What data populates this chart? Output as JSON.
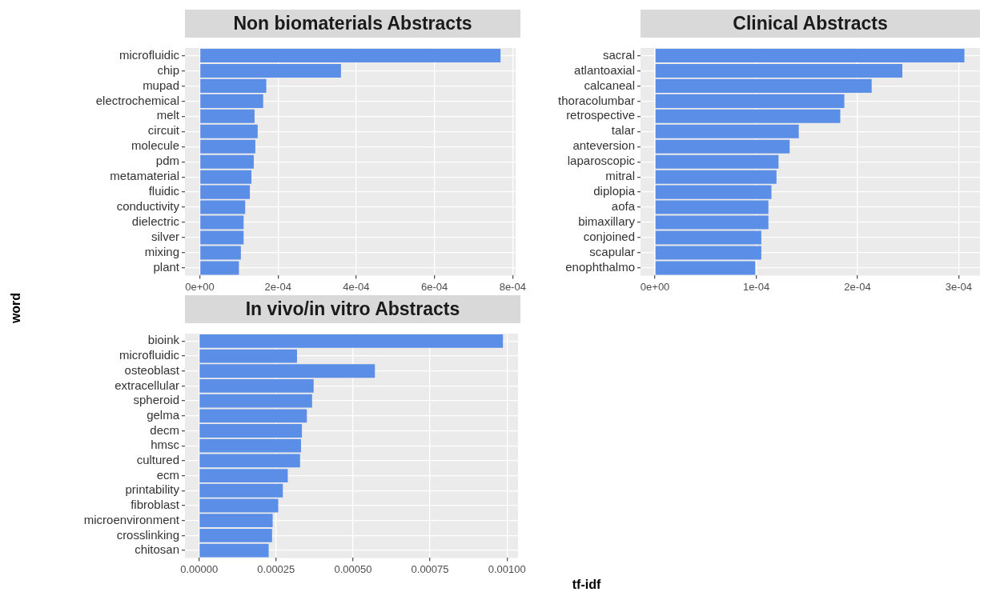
{
  "chart_data": [
    {
      "type": "bar",
      "orientation": "horizontal",
      "title": "Non biomaterials Abstracts",
      "grid": true,
      "categories": [
        "microfluidic",
        "chip",
        "mupad",
        "electrochemical",
        "melt",
        "circuit",
        "molecule",
        "pdm",
        "metamaterial",
        "fluidic",
        "conductivity",
        "dielectric",
        "silver",
        "mixing",
        "plant"
      ],
      "values": [
        0.000769,
        0.000361,
        0.00017,
        0.000162,
        0.00014,
        0.000148,
        0.000142,
        0.000138,
        0.000132,
        0.000128,
        0.000116,
        0.000112,
        0.000112,
        0.000105,
        0.0001
      ],
      "color": "#5b8ee6",
      "xlim": [
        -3.8e-05,
        0.000808
      ],
      "xticks": [
        {
          "value": 0,
          "label": "0e+00"
        },
        {
          "value": 0.0002,
          "label": "2e-04"
        },
        {
          "value": 0.0004,
          "label": "4e-04"
        },
        {
          "value": 0.0006,
          "label": "6e-04"
        },
        {
          "value": 0.0008,
          "label": "8e-04"
        }
      ]
    },
    {
      "type": "bar",
      "orientation": "horizontal",
      "title": "Clinical Abstracts",
      "grid": true,
      "categories": [
        "sacral",
        "atlantoaxial",
        "calcaneal",
        "thoracolumbar",
        "retrospective",
        "talar",
        "anteversion",
        "laparoscopic",
        "mitral",
        "diplopia",
        "aofa",
        "bimaxillary",
        "conjoined",
        "scapular",
        "enophthalmo"
      ],
      "values": [
        0.0003056,
        0.0002443,
        0.000214,
        0.000187,
        0.000183,
        0.000142,
        0.000133,
        0.000122,
        0.00012,
        0.000115,
        0.000112,
        0.000112,
        0.000105,
        0.000105,
        9.9e-05
      ],
      "color": "#5b8ee6",
      "xlim": [
        -1.43e-05,
        0.000321
      ],
      "xticks": [
        {
          "value": 0,
          "label": "0e+00"
        },
        {
          "value": 0.0001,
          "label": "1e-04"
        },
        {
          "value": 0.0002,
          "label": "2e-04"
        },
        {
          "value": 0.0003,
          "label": "3e-04"
        }
      ]
    },
    {
      "type": "bar",
      "orientation": "horizontal",
      "title": "In vivo/in vitro Abstracts",
      "grid": true,
      "xlabel": "tf-idf",
      "ylabel": "word",
      "categories": [
        "bioink",
        "microfluidic",
        "osteoblast",
        "extracellular",
        "spheroid",
        "gelma",
        "decm",
        "hmsc",
        "cultured",
        "ecm",
        "printability",
        "fibroblast",
        "microenvironment",
        "crosslinking",
        "chitosan"
      ],
      "values": [
        0.000987,
        0.000318,
        0.000571,
        0.000372,
        0.000367,
        0.00035,
        0.000334,
        0.000331,
        0.000328,
        0.000288,
        0.000272,
        0.000257,
        0.000239,
        0.000237,
        0.000226
      ],
      "color": "#5b8ee6",
      "xlim": [
        -4.6e-05,
        0.001036
      ],
      "xticks": [
        {
          "value": 0,
          "label": "0.00000"
        },
        {
          "value": 0.00025,
          "label": "0.00025"
        },
        {
          "value": 0.0005,
          "label": "0.00050"
        },
        {
          "value": 0.00075,
          "label": "0.00075"
        },
        {
          "value": 0.001,
          "label": "0.00100"
        }
      ]
    }
  ]
}
